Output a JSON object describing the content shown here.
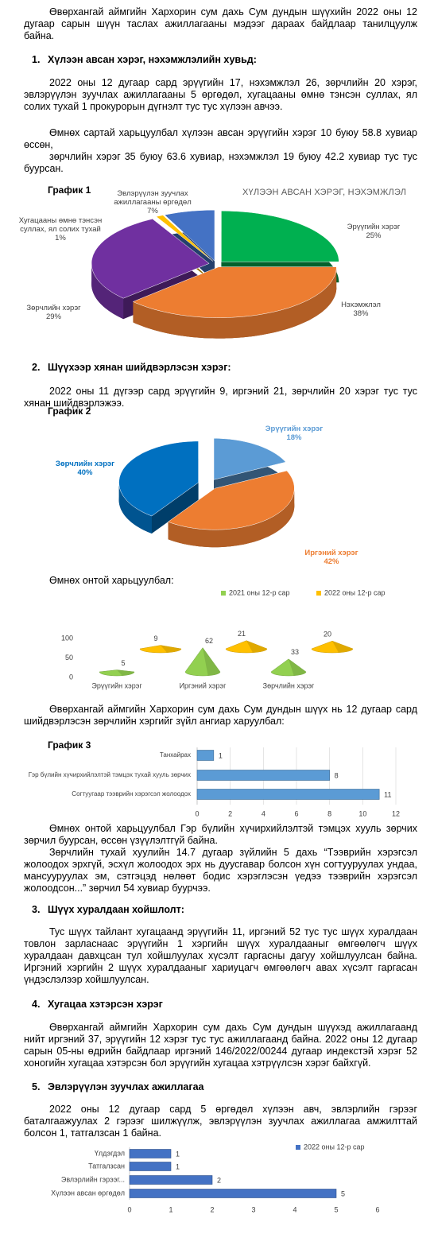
{
  "document": {
    "intro": "Өвөрхангай аймгийн Хархорин сум дахь Сум дундын шүүхийн 2022 оны 12 дугаар сарын шүүн таслах ажиллагааны мэдээг дараах байдлаар танилцуулж байна.",
    "sections": [
      {
        "number": "1.",
        "heading": "Хүлээн авсан хэрэг, нэхэмжлэлийн хувьд:",
        "paragraphs": [
          "2022 оны 12 дугаар сард эрүүгийн 17, нэхэмжлэл 26, зөрчлийн 20 хэрэг, эвлэрүүлэн зуучлах ажиллагааны 5 өргөдөл, хугацааны өмнө тэнсэн суллах, ял солих тухай 1 прокурорын дүгнэлт тус тус хүлээн авчээ.",
          "Өмнөх сартай харьцуулбал хүлээн авсан эрүүгийн хэрэг 10 буюу 58.8 хувиар өссөн,",
          "зөрчлийн хэрэг 35 буюу 63.6 хувиар, нэхэмжлэл 19 буюу 42.2 хувиар тус тус буурсан."
        ]
      },
      {
        "number": "2.",
        "heading": "Шүүхээр хянан шийдвэрлэсэн хэрэг:",
        "paragraphs": [
          "2022 оны 11 дүгээр сард эрүүгийн 9, иргэний 21, зөрчлийн 20 хэрэг тус тус хянан шийдвэрлэжээ.",
          "Өмнөх онтой харьцуулбал:",
          "Өвөрхангай аймгийн Хархорин сум дахь Сум дундын шүүх нь 12 дугаар сард шийдвэрлэсэн зөрчлийн хэргийг зүйл ангиар харуулбал:",
          "Өмнөх онтой харьцуулбал Гэр бүлийн хүчирхийлэлтэй тэмцэх хууль зөрчих зөрчил буурсан, өссөн үзүүлэлтгүй байна.",
          "Зөрчлийн тухай хуулийн 14.7 дугаар зүйлийн 5 дахь “Тээврийн хэрэгсэл жолоодох эрхгүй, эсхүл жолоодох эрх нь дуусгавар болсон хүн согтууруулах ундаа, мансууруулах эм, сэтгэцэд нөлөөт бодис хэрэглэсэн үедээ тээврийн хэрэгсэл жолоодсон...” зөрчил 54 хувиар буурчээ."
        ]
      },
      {
        "number": "3.",
        "heading": "Шүүх хуралдаан хойшлолт:",
        "paragraphs": [
          "Тус шүүх тайлант хугацаанд эрүүгийн 11, иргэний 52 тус тус шүүх хуралдаан товлон зарласнаас эрүүгийн 1 хэргийн шүүх хуралдааныг өмгөөлөгч шүүх хуралдаан давхцсан тул хойшлуулах хүсэлт гаргасны дагуу хойшлуулсан байна. Иргэний хэргийн 2 шүүх хуралдааныг хариуцагч өмгөөлөгч авах хүсэлт гаргасан үндэслэлээр хойшлуулсан."
        ]
      },
      {
        "number": "4.",
        "heading": "Хугацаа хэтэрсэн хэрэг",
        "paragraphs": [
          "Өвөрхангай аймгийн Хархорин сум дахь Сум дундын шүүхэд ажиллагаанд нийт иргэний 37, эрүүгийн 12 хэрэг тус тус ажиллагаанд байна. 2022 оны 12 дугаар сарын 05-ны өдрийн байдлаар иргэний 146/2022/00244 дугаар индекстэй хэрэг 52 хоногийн хугацаа хэтэрсэн бол эрүүгийн хугацаа хэтрүүлсэн хэрэг байхгүй."
        ]
      },
      {
        "number": "5.",
        "heading": "Эвлэрүүлэн зуучлах ажиллагаа",
        "paragraphs": [
          "2022 оны 12 дугаар сард 5 өргөдөл хүлээн авч, эвлэрлийн гэрээг баталгаажуулах 2 гэрээг шилжүүлж, эвлэрүүлэн зуучлах ажиллагаа амжилттай болсон 1, татгалзсан 1 байна."
        ]
      }
    ]
  },
  "chart_data": [
    {
      "type": "pie",
      "label": "График 1",
      "title": "ХҮЛЭЭН АВСАН ХЭРЭГ, НЭХЭМЖЛЭЛ",
      "categories": [
        "Эрүүгийн хэрэг",
        "Нэхэмжлэл",
        "Зөрчлийн хэрэг",
        "Хугацааны өмнө тэнсэн суллах, ял солих тухай",
        "Эвлэрүүлэн зуучлах ажиллагааны өргөдөл"
      ],
      "values": [
        25,
        38,
        29,
        1,
        7
      ],
      "value_labels": [
        "25%",
        "38%",
        "29%",
        "1%",
        "7%"
      ],
      "colors": [
        "#00b050",
        "#ed7d31",
        "#7030a0",
        "#ffc000",
        "#4472c4"
      ]
    },
    {
      "type": "pie",
      "label": "График 2",
      "categories": [
        "Эрүүгийн хэрэг",
        "Иргэний хэрэг",
        "Зөрчлийн хэрэг"
      ],
      "values": [
        18,
        42,
        40
      ],
      "value_labels": [
        "18%",
        "42%",
        "40%"
      ],
      "colors": [
        "#5b9bd5",
        "#ed7d31",
        "#0070c0"
      ]
    },
    {
      "type": "cone",
      "categories": [
        "Эрүүгийн хэрэг",
        "Иргэний хэрэг",
        "Зөрчлийн хэрэг"
      ],
      "series": [
        {
          "name": "2021 оны 12-р сар",
          "color": "#92d050",
          "values": [
            5,
            62,
            33
          ]
        },
        {
          "name": "2022 оны 12-р сар",
          "color": "#ffc000",
          "values": [
            9,
            21,
            20
          ]
        }
      ],
      "ylim": [
        0,
        100
      ],
      "yticks": [
        0,
        50,
        100
      ]
    },
    {
      "type": "bar",
      "orientation": "horizontal",
      "label": "График 3",
      "categories": [
        "Танхайрах",
        "Гэр бүлийн хүчирхийлэлтэй тэмцэх тухай хууль зөрчих",
        "Согтуугаар тээврийн хэрэгсэл жолоодох"
      ],
      "values": [
        1,
        8,
        11
      ],
      "color": "#5b9bd5",
      "xlim": [
        0,
        12
      ],
      "xticks": [
        0,
        2,
        4,
        6,
        8,
        10,
        12
      ],
      "grid": true
    },
    {
      "type": "bar",
      "orientation": "horizontal",
      "categories": [
        "Үлдэгдэл",
        "Татгалзсан",
        "Эвлэрлийн гэрээг...",
        "Хүлээн авсан өргөдөл"
      ],
      "series": [
        {
          "name": "2022 оны 12-р сар",
          "color": "#4472c4",
          "values": [
            1,
            1,
            2,
            5
          ]
        }
      ],
      "xlim": [
        0,
        6
      ],
      "xticks": [
        0,
        1,
        2,
        3,
        4,
        5,
        6
      ],
      "grid": false
    }
  ]
}
